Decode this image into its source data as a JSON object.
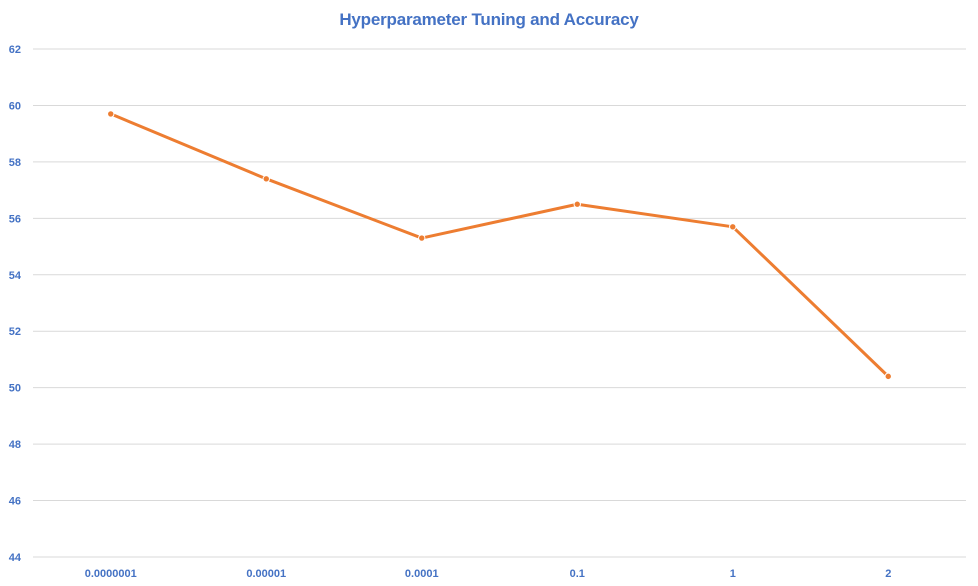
{
  "chart_data": {
    "type": "line",
    "title": "Hyperparameter Tuning and Accuracy",
    "xlabel": "",
    "ylabel": "",
    "categories": [
      "0.0000001",
      "0.00001",
      "0.0001",
      "0.1",
      "1",
      "2"
    ],
    "series": [
      {
        "values": [
          59.7,
          57.4,
          55.3,
          56.5,
          55.7,
          50.4
        ],
        "color": "#ED7D31"
      }
    ],
    "ylim": [
      44,
      62
    ],
    "ytick_step": 2,
    "grid": true,
    "legend": "none"
  }
}
